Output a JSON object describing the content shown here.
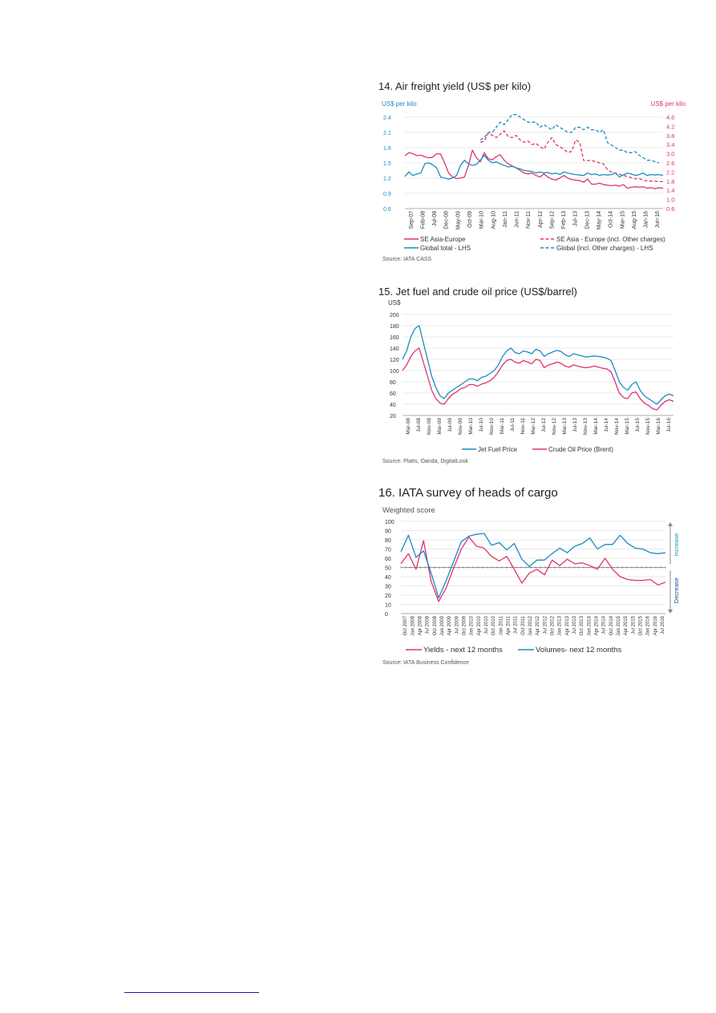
{
  "chart_data": [
    {
      "type": "line",
      "title": "14. Air freight yield (US$ per kilo)",
      "ylabel": "US$ per kilo",
      "y2label": "US$ per kilo",
      "ylim": [
        0.6,
        2.4
      ],
      "yticks": [
        "2.4",
        "2.1",
        "1.8",
        "1.5",
        "1.2",
        "0.9",
        "0.6"
      ],
      "y2lim": [
        0.6,
        4.6
      ],
      "y2ticks": [
        "4.6",
        "4.2",
        "3.8",
        "3.4",
        "3.0",
        "2.6",
        "2.2",
        "1.8",
        "1.4",
        "1.0",
        "0.6"
      ],
      "xticks": [
        "Sep-07",
        "Feb-08",
        "Jul-08",
        "Dec-08",
        "May-09",
        "Oct-09",
        "Mar-10",
        "Aug-10",
        "Jan-11",
        "Jun-11",
        "Nov-11",
        "Apr-12",
        "Sep-12",
        "Feb-13",
        "Jul-13",
        "Dec-13",
        "May-14",
        "Oct-14",
        "Mar-15",
        "Aug-15",
        "Jan-16",
        "Jun-16"
      ],
      "grid": true,
      "legend": "bottom",
      "source": "Source: IATA CASS",
      "series": [
        {
          "name": "SE Asia-Europe",
          "axis": "left",
          "style": "solid",
          "color": "#e0336f",
          "start": 0,
          "values": [
            1.64,
            1.7,
            1.68,
            1.64,
            1.65,
            1.62,
            1.6,
            1.61,
            1.68,
            1.67,
            1.5,
            1.3,
            1.22,
            1.19,
            1.2,
            1.22,
            1.45,
            1.75,
            1.6,
            1.52,
            1.7,
            1.58,
            1.56,
            1.62,
            1.66,
            1.55,
            1.48,
            1.44,
            1.4,
            1.35,
            1.3,
            1.28,
            1.3,
            1.25,
            1.22,
            1.28,
            1.22,
            1.18,
            1.16,
            1.2,
            1.25,
            1.2,
            1.17,
            1.16,
            1.15,
            1.12,
            1.18,
            1.08,
            1.08,
            1.1,
            1.07,
            1.06,
            1.05,
            1.06,
            1.04,
            1.07,
            1.0,
            1.02,
            1.03,
            1.02,
            1.03,
            1.0,
            1.01,
            0.99,
            1.01,
            1.0
          ]
        },
        {
          "name": "SE Asia - Europe (incl. Other charges)",
          "axis": "right",
          "style": "dashed",
          "color": "#e0336f",
          "start": 19,
          "values": [
            3.5,
            3.55,
            3.9,
            3.8,
            3.7,
            3.85,
            4.0,
            3.75,
            3.7,
            3.8,
            3.6,
            3.5,
            3.55,
            3.4,
            3.45,
            3.3,
            3.2,
            3.5,
            3.7,
            3.4,
            3.3,
            3.2,
            3.05,
            3.1,
            3.6,
            3.5,
            2.7,
            2.7,
            2.7,
            2.65,
            2.6,
            2.55,
            2.3,
            2.2,
            2.15,
            2.1,
            2.05,
            2.0,
            1.95,
            1.9,
            1.9,
            1.85,
            1.8,
            1.8,
            1.8,
            1.78,
            1.78
          ]
        },
        {
          "name": "Global total - LHS",
          "axis": "left",
          "style": "solid",
          "color": "#1a8cc0",
          "start": 0,
          "values": [
            1.23,
            1.32,
            1.25,
            1.28,
            1.3,
            1.48,
            1.5,
            1.46,
            1.4,
            1.22,
            1.2,
            1.18,
            1.2,
            1.25,
            1.45,
            1.55,
            1.48,
            1.45,
            1.47,
            1.55,
            1.65,
            1.55,
            1.5,
            1.52,
            1.48,
            1.45,
            1.42,
            1.43,
            1.4,
            1.38,
            1.35,
            1.34,
            1.33,
            1.3,
            1.32,
            1.3,
            1.31,
            1.28,
            1.3,
            1.27,
            1.32,
            1.3,
            1.28,
            1.27,
            1.26,
            1.25,
            1.3,
            1.27,
            1.28,
            1.25,
            1.27,
            1.26,
            1.27,
            1.3,
            1.22,
            1.26,
            1.3,
            1.28,
            1.25,
            1.27,
            1.3,
            1.25,
            1.27,
            1.26,
            1.27,
            1.25
          ]
        },
        {
          "name": "Global (incl. Other charges) - LHS",
          "axis": "left",
          "style": "dashed",
          "color": "#1a8cc0",
          "start": 19,
          "values": [
            1.95,
            2.0,
            2.1,
            2.1,
            2.2,
            2.3,
            2.25,
            2.35,
            2.45,
            2.45,
            2.4,
            2.35,
            2.3,
            2.3,
            2.3,
            2.2,
            2.25,
            2.2,
            2.15,
            2.25,
            2.2,
            2.15,
            2.1,
            2.1,
            2.2,
            2.2,
            2.15,
            2.2,
            2.15,
            2.15,
            2.1,
            2.15,
            1.9,
            1.85,
            1.8,
            1.75,
            1.75,
            1.7,
            1.7,
            1.72,
            1.65,
            1.6,
            1.55,
            1.55,
            1.52,
            1.5
          ]
        }
      ]
    },
    {
      "type": "line",
      "title": "15. Jet fuel and crude oil price (US$/barrel)",
      "ylabel": "US$",
      "ylim": [
        20,
        200
      ],
      "yticks": [
        "200",
        "180",
        "160",
        "140",
        "120",
        "100",
        "80",
        "60",
        "40",
        "20"
      ],
      "xticks": [
        "Mar-08",
        "Jul-08",
        "Nov-08",
        "Mar-09",
        "Jul-09",
        "Nov-09",
        "Mar-10",
        "Jul-10",
        "Nov-10",
        "Mar-11",
        "Jul-11",
        "Nov-11",
        "Mar-12",
        "Jul-12",
        "Nov-12",
        "Mar-13",
        "Jul-13",
        "Nov-13",
        "Mar-14",
        "Jul-14",
        "Nov-14",
        "Mar-15",
        "Jul-15",
        "Nov-15",
        "Mar-16",
        "Jul-16"
      ],
      "grid": true,
      "legend": "bottom",
      "source": "Source: Platts, Oanda, DigitalLook",
      "series": [
        {
          "name": "Jet Fuel Price",
          "color": "#1a8cc0",
          "values": [
            120,
            135,
            160,
            175,
            180,
            150,
            120,
            90,
            70,
            55,
            50,
            60,
            65,
            70,
            75,
            80,
            85,
            85,
            82,
            88,
            90,
            95,
            100,
            110,
            125,
            135,
            140,
            132,
            130,
            135,
            133,
            130,
            138,
            135,
            125,
            130,
            133,
            136,
            134,
            128,
            125,
            130,
            128,
            126,
            124,
            125,
            126,
            125,
            124,
            122,
            118,
            100,
            80,
            70,
            65,
            75,
            80,
            65,
            55,
            50,
            45,
            40,
            48,
            55,
            58,
            55
          ]
        },
        {
          "name": "Crude Oil Price (Brent)",
          "color": "#e0336f",
          "values": [
            100,
            110,
            125,
            135,
            140,
            115,
            90,
            65,
            50,
            42,
            40,
            50,
            58,
            62,
            68,
            70,
            75,
            75,
            72,
            76,
            78,
            82,
            88,
            98,
            110,
            118,
            120,
            115,
            113,
            118,
            115,
            112,
            120,
            118,
            105,
            110,
            112,
            115,
            113,
            108,
            106,
            110,
            108,
            106,
            105,
            106,
            108,
            106,
            104,
            103,
            98,
            80,
            60,
            52,
            50,
            60,
            62,
            50,
            42,
            38,
            32,
            30,
            38,
            45,
            48,
            45
          ]
        }
      ]
    },
    {
      "type": "line",
      "title": "16. IATA survey of heads of cargo",
      "ylabel": "Weighted score",
      "ylim": [
        0,
        100
      ],
      "yticks": [
        "100",
        "90",
        "80",
        "70",
        "60",
        "50",
        "40",
        "30",
        "20",
        "10",
        "0"
      ],
      "reference_line": 50,
      "xticks": [
        "Oct 2007",
        "Jan 2008",
        "Apr 2008",
        "Jul 2008",
        "Oct 2008",
        "Jan 2009",
        "Apr 2009",
        "Jul 2009",
        "Oct 2009",
        "Jan 2010",
        "Apr 2010",
        "Jul 2010",
        "Oct 2010",
        "Jan 2011",
        "Apr 2011",
        "Jul 2011",
        "Oct 2011",
        "Jan 2012",
        "Apr 2012",
        "Jul 2012",
        "Oct 2012",
        "Jan 2013",
        "Apr 2013",
        "Jul 2013",
        "Oct 2013",
        "Jan 2014",
        "Apr 2014",
        "Jul 2014",
        "Oct 2014",
        "Jan 2015",
        "Apr 2015",
        "Jul 2015",
        "Oct 2015",
        "Jan 2016",
        "Apr 2016",
        "Jul 2016"
      ],
      "grid": true,
      "legend": "bottom",
      "annotations": [
        "Increase",
        "Decrease"
      ],
      "source": "Source: IATA Business Confidence",
      "series": [
        {
          "name": "Yields - next 12 months",
          "color": "#e0336f",
          "values": [
            54,
            65,
            48,
            79,
            35,
            13,
            28,
            50,
            70,
            83,
            73,
            71,
            62,
            57,
            62,
            48,
            33,
            44,
            48,
            42,
            58,
            52,
            59,
            54,
            55,
            52,
            48,
            60,
            48,
            40,
            37,
            36,
            36,
            37,
            31,
            34
          ]
        },
        {
          "name": "Volumes- next 12 months",
          "color": "#1a8cc0",
          "values": [
            67,
            85,
            61,
            68,
            44,
            17,
            36,
            57,
            78,
            84,
            86,
            87,
            74,
            77,
            69,
            76,
            59,
            51,
            58,
            58,
            65,
            71,
            66,
            73,
            76,
            82,
            70,
            75,
            75,
            85,
            76,
            71,
            70,
            66,
            65,
            66
          ]
        }
      ]
    }
  ]
}
